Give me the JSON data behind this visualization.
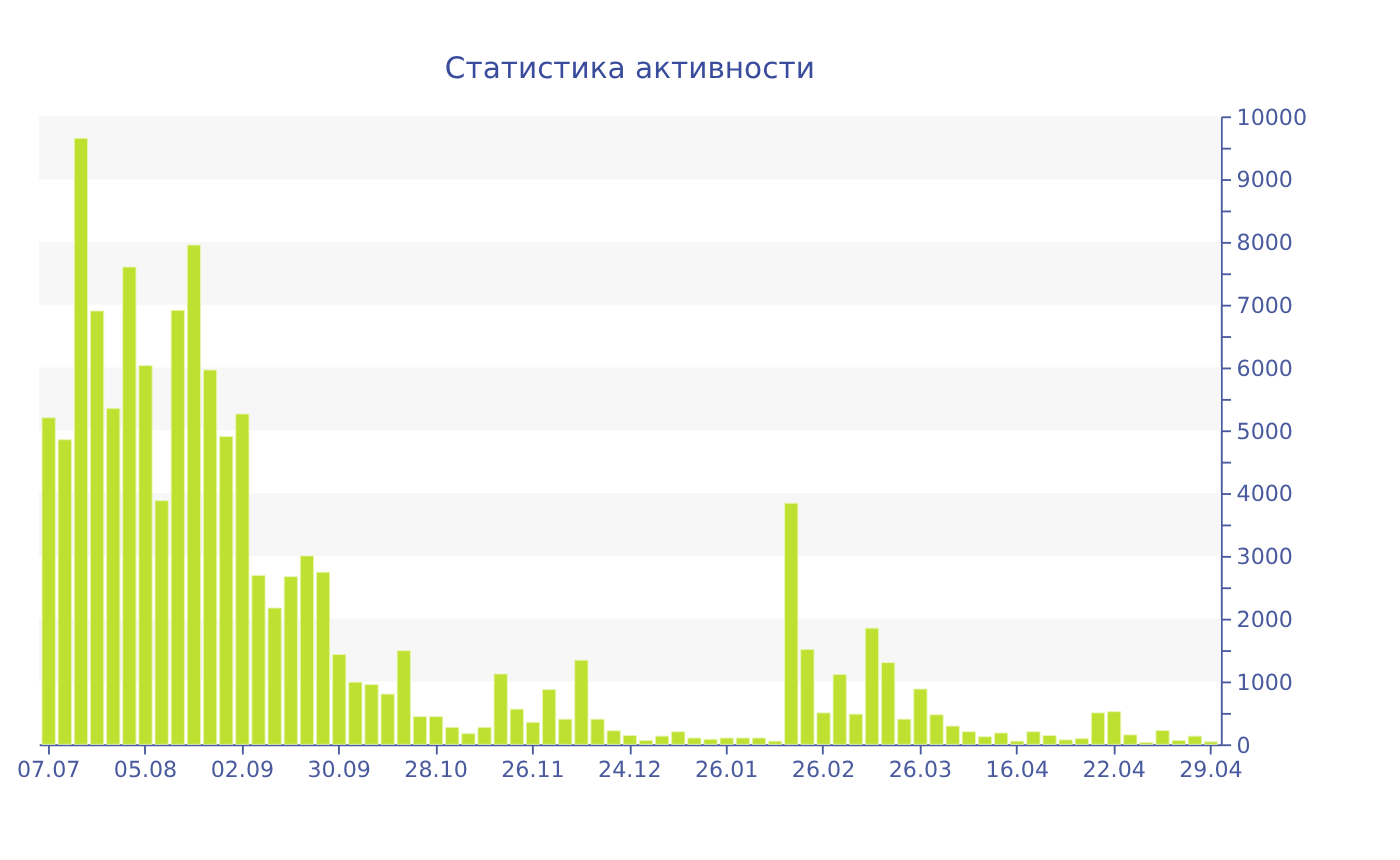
{
  "chart_data": {
    "type": "bar",
    "title": "Статистика активности",
    "categories": [
      "07.07",
      null,
      null,
      null,
      null,
      null,
      "05.08",
      null,
      null,
      null,
      null,
      null,
      "02.09",
      null,
      null,
      null,
      null,
      null,
      "30.09",
      null,
      null,
      null,
      null,
      null,
      "28.10",
      null,
      null,
      null,
      null,
      null,
      "26.11",
      null,
      null,
      null,
      null,
      null,
      "24.12",
      null,
      null,
      null,
      null,
      null,
      "26.01",
      null,
      null,
      null,
      null,
      null,
      "26.02",
      null,
      null,
      null,
      null,
      null,
      "26.03",
      null,
      null,
      null,
      null,
      null,
      "16.04",
      null,
      null,
      null,
      null,
      null,
      "22.04",
      null,
      null,
      null,
      null,
      null,
      "29.04"
    ],
    "values": [
      5200,
      4850,
      9650,
      6900,
      5350,
      7600,
      6030,
      3880,
      6910,
      7950,
      5960,
      4900,
      5260,
      2690,
      2170,
      2670,
      3000,
      2740,
      1430,
      990,
      950,
      800,
      1490,
      440,
      440,
      270,
      170,
      270,
      1120,
      560,
      350,
      870,
      400,
      1340,
      400,
      215,
      140,
      60,
      130,
      200,
      100,
      80,
      100,
      100,
      100,
      50,
      3840,
      1510,
      500,
      1110,
      480,
      1850,
      1300,
      400,
      880,
      470,
      290,
      200,
      120,
      180,
      50,
      200,
      140,
      70,
      90,
      500,
      520,
      150,
      30,
      220,
      60,
      130,
      40
    ],
    "color": "#bde031",
    "ylim": [
      0,
      10000
    ],
    "yticks": [
      0,
      {
        "value": 500,
        "label": null
      },
      1000,
      {
        "value": 1500,
        "label": null
      },
      2000,
      {
        "value": 2500,
        "label": null
      },
      3000,
      {
        "value": 3500,
        "label": null
      },
      4000,
      {
        "value": 4500,
        "label": null
      },
      5000,
      {
        "value": 5500,
        "label": null
      },
      6000,
      {
        "value": 6500,
        "label": null
      },
      7000,
      {
        "value": 7500,
        "label": null
      },
      8000,
      {
        "value": 8500,
        "label": null
      },
      9000,
      {
        "value": 9500,
        "label": null
      },
      10000
    ],
    "grid": false,
    "bands": [
      {
        "axis": "y",
        "from": 1000,
        "to": 2000,
        "color": "#f7f7f7"
      },
      {
        "axis": "y",
        "from": 3000,
        "to": 4000,
        "color": "#f7f7f7"
      },
      {
        "axis": "y",
        "from": 5000,
        "to": 6000,
        "color": "#f7f7f7"
      },
      {
        "axis": "y",
        "from": 7000,
        "to": 8000,
        "color": "#f7f7f7"
      },
      {
        "axis": "y",
        "from": 9000,
        "to": 10000,
        "color": "#f7f7f7"
      }
    ]
  }
}
